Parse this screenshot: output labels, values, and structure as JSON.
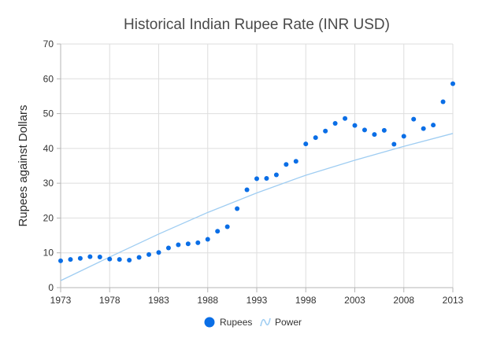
{
  "chart_data": {
    "type": "scatter",
    "title": "Historical Indian Rupee Rate (INR USD)",
    "xlabel": "",
    "ylabel": "Rupees against Dollars",
    "xlim": [
      1973,
      2013
    ],
    "ylim": [
      0,
      70
    ],
    "x_ticks": [
      "1973",
      "1978",
      "1983",
      "1988",
      "1993",
      "1998",
      "2003",
      "2008",
      "2013"
    ],
    "y_ticks": [
      "0",
      "10",
      "20",
      "30",
      "40",
      "50",
      "60",
      "70"
    ],
    "grid": true,
    "legend_position": "bottom",
    "series": [
      {
        "name": "Rupees",
        "type": "scatter",
        "color": "#0a6ee6",
        "points": [
          [
            1973,
            7.7
          ],
          [
            1974,
            8.1
          ],
          [
            1975,
            8.4
          ],
          [
            1976,
            8.9
          ],
          [
            1977,
            8.8
          ],
          [
            1978,
            8.2
          ],
          [
            1979,
            8.1
          ],
          [
            1980,
            7.9
          ],
          [
            1981,
            8.7
          ],
          [
            1982,
            9.5
          ],
          [
            1983,
            10.1
          ],
          [
            1984,
            11.4
          ],
          [
            1985,
            12.3
          ],
          [
            1986,
            12.6
          ],
          [
            1987,
            12.9
          ],
          [
            1988,
            13.9
          ],
          [
            1989,
            16.2
          ],
          [
            1990,
            17.5
          ],
          [
            1991,
            22.7
          ],
          [
            1992,
            28.1
          ],
          [
            1993,
            31.3
          ],
          [
            1994,
            31.4
          ],
          [
            1995,
            32.4
          ],
          [
            1996,
            35.4
          ],
          [
            1997,
            36.3
          ],
          [
            1998,
            41.3
          ],
          [
            1999,
            43.1
          ],
          [
            2000,
            45.0
          ],
          [
            2001,
            47.2
          ],
          [
            2002,
            48.6
          ],
          [
            2003,
            46.6
          ],
          [
            2004,
            45.3
          ],
          [
            2005,
            44.0
          ],
          [
            2006,
            45.2
          ],
          [
            2007,
            41.2
          ],
          [
            2008,
            43.5
          ],
          [
            2009,
            48.4
          ],
          [
            2010,
            45.7
          ],
          [
            2011,
            46.7
          ],
          [
            2012,
            53.4
          ],
          [
            2013,
            58.6
          ]
        ]
      },
      {
        "name": "Power",
        "type": "trendline",
        "color": "#9fcdf2",
        "points": [
          [
            1973,
            2.0
          ],
          [
            1978,
            8.8
          ],
          [
            1983,
            15.4
          ],
          [
            1988,
            21.6
          ],
          [
            1993,
            27.2
          ],
          [
            1998,
            32.3
          ],
          [
            2003,
            36.6
          ],
          [
            2008,
            40.6
          ],
          [
            2013,
            44.3
          ]
        ]
      }
    ]
  }
}
